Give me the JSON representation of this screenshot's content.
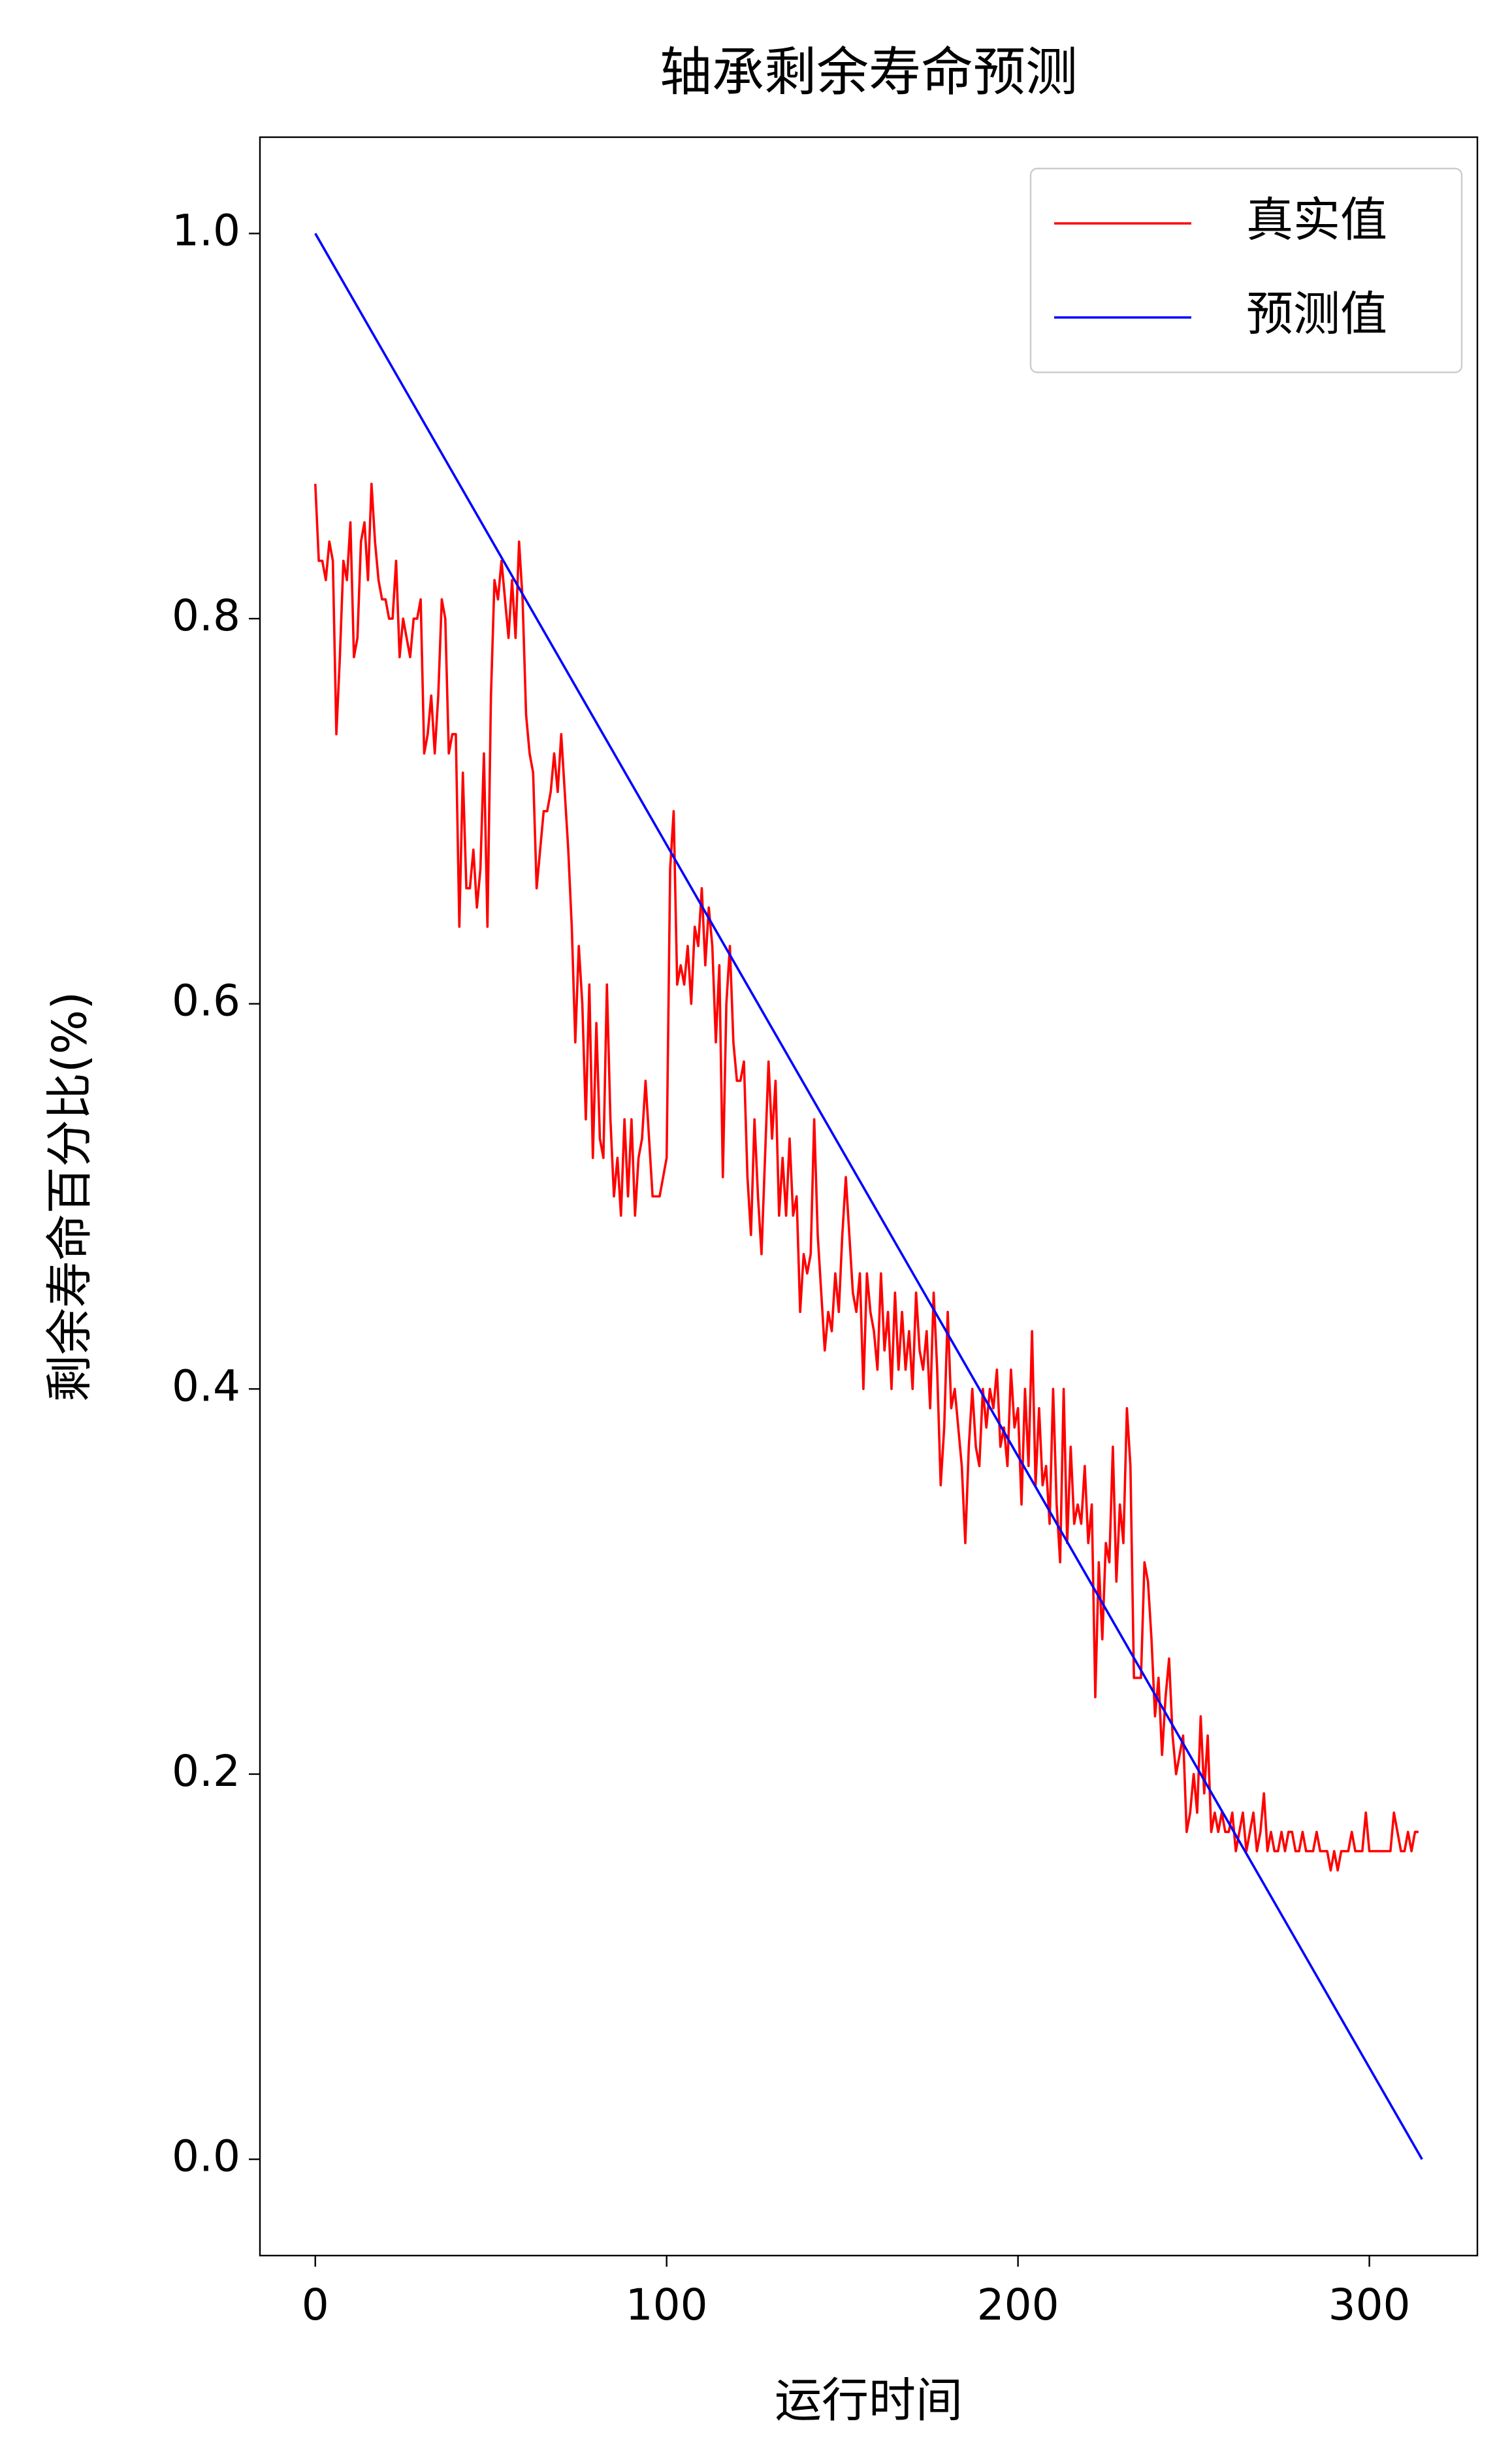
{
  "chart_data": {
    "type": "line",
    "title": "轴承剩余寿命预测",
    "x_label": "运行时间",
    "y_label": "剩余寿命百分比(%)",
    "xlim": [
      -15.75,
      330.75
    ],
    "ylim": [
      -0.05,
      1.05
    ],
    "xticks": [
      0,
      100,
      200,
      300
    ],
    "yticks": [
      {
        "value": 0,
        "label": "0.0"
      },
      0.2,
      0.4,
      0.6,
      0.8,
      {
        "value": 1,
        "label": "1.0"
      }
    ],
    "grid": false,
    "legend": "upper right",
    "series": [
      {
        "name": "真实值",
        "color": "#ff0000",
        "x": [
          0,
          1,
          2,
          3,
          4,
          5,
          6,
          7,
          8,
          9,
          10,
          11,
          12,
          13,
          14,
          15,
          16,
          17,
          18,
          19,
          20,
          21,
          22,
          23,
          24,
          25,
          26,
          27,
          28,
          29,
          30,
          31,
          32,
          33,
          34,
          35,
          36,
          37,
          38,
          39,
          40,
          41,
          42,
          43,
          44,
          45,
          46,
          47,
          48,
          49,
          50,
          51,
          52,
          53,
          54,
          55,
          56,
          57,
          58,
          59,
          60,
          61,
          62,
          63,
          64,
          65,
          66,
          67,
          68,
          69,
          70,
          71,
          72,
          73,
          74,
          75,
          76,
          77,
          78,
          79,
          80,
          81,
          82,
          83,
          84,
          85,
          86,
          87,
          88,
          89,
          90,
          91,
          92,
          93,
          94,
          95,
          96,
          97,
          98,
          99,
          100,
          101,
          102,
          103,
          104,
          105,
          106,
          107,
          108,
          109,
          110,
          111,
          112,
          113,
          114,
          115,
          116,
          117,
          118,
          119,
          120,
          121,
          122,
          123,
          124,
          125,
          126,
          127,
          128,
          129,
          130,
          131,
          132,
          133,
          134,
          135,
          136,
          137,
          138,
          139,
          140,
          141,
          142,
          143,
          144,
          145,
          146,
          147,
          148,
          149,
          150,
          151,
          152,
          153,
          154,
          155,
          156,
          157,
          158,
          159,
          160,
          161,
          162,
          163,
          164,
          165,
          166,
          167,
          168,
          169,
          170,
          171,
          172,
          173,
          174,
          175,
          176,
          177,
          178,
          179,
          180,
          181,
          182,
          183,
          184,
          185,
          186,
          187,
          188,
          189,
          190,
          191,
          192,
          193,
          194,
          195,
          196,
          197,
          198,
          199,
          200,
          201,
          202,
          203,
          204,
          205,
          206,
          207,
          208,
          209,
          210,
          211,
          212,
          213,
          214,
          215,
          216,
          217,
          218,
          219,
          220,
          221,
          222,
          223,
          224,
          225,
          226,
          227,
          228,
          229,
          230,
          231,
          232,
          233,
          234,
          235,
          236,
          237,
          238,
          239,
          240,
          241,
          242,
          243,
          244,
          245,
          246,
          247,
          248,
          249,
          250,
          251,
          252,
          253,
          254,
          255,
          256,
          257,
          258,
          259,
          260,
          261,
          262,
          263,
          264,
          265,
          266,
          267,
          268,
          269,
          270,
          271,
          272,
          273,
          274,
          275,
          276,
          277,
          278,
          279,
          280,
          281,
          282,
          283,
          284,
          285,
          286,
          287,
          288,
          289,
          290,
          291,
          292,
          293,
          294,
          295,
          296,
          297,
          298,
          299,
          300,
          301,
          302,
          303,
          304,
          305,
          306,
          307,
          308,
          309,
          310,
          311,
          312,
          313,
          314
        ],
        "values": [
          0.87,
          0.83,
          0.83,
          0.82,
          0.84,
          0.83,
          0.74,
          0.78,
          0.83,
          0.82,
          0.85,
          0.78,
          0.79,
          0.84,
          0.85,
          0.82,
          0.87,
          0.84,
          0.82,
          0.81,
          0.81,
          0.8,
          0.8,
          0.83,
          0.78,
          0.8,
          0.79,
          0.78,
          0.8,
          0.8,
          0.81,
          0.73,
          0.74,
          0.76,
          0.73,
          0.76,
          0.81,
          0.8,
          0.73,
          0.74,
          0.74,
          0.64,
          0.72,
          0.66,
          0.66,
          0.68,
          0.65,
          0.67,
          0.73,
          0.64,
          0.76,
          0.82,
          0.81,
          0.83,
          0.81,
          0.79,
          0.82,
          0.79,
          0.84,
          0.81,
          0.75,
          0.73,
          0.72,
          0.66,
          0.68,
          0.7,
          0.7,
          0.71,
          0.73,
          0.71,
          0.74,
          0.71,
          0.68,
          0.64,
          0.58,
          0.63,
          0.6,
          0.54,
          0.61,
          0.52,
          0.59,
          0.53,
          0.52,
          0.61,
          0.54,
          0.5,
          0.52,
          0.49,
          0.54,
          0.5,
          0.54,
          0.49,
          0.52,
          0.53,
          0.56,
          0.53,
          0.5,
          0.5,
          0.5,
          0.51,
          0.52,
          0.67,
          0.7,
          0.61,
          0.62,
          0.61,
          0.63,
          0.6,
          0.64,
          0.63,
          0.66,
          0.62,
          0.65,
          0.63,
          0.58,
          0.62,
          0.51,
          0.6,
          0.63,
          0.58,
          0.56,
          0.56,
          0.57,
          0.51,
          0.48,
          0.54,
          0.5,
          0.47,
          0.52,
          0.57,
          0.53,
          0.56,
          0.49,
          0.52,
          0.49,
          0.53,
          0.49,
          0.5,
          0.44,
          0.47,
          0.46,
          0.47,
          0.54,
          0.48,
          0.45,
          0.42,
          0.44,
          0.43,
          0.46,
          0.44,
          0.48,
          0.51,
          0.48,
          0.45,
          0.44,
          0.46,
          0.4,
          0.46,
          0.44,
          0.43,
          0.41,
          0.46,
          0.42,
          0.44,
          0.4,
          0.45,
          0.41,
          0.44,
          0.41,
          0.43,
          0.4,
          0.45,
          0.42,
          0.41,
          0.43,
          0.39,
          0.45,
          0.41,
          0.35,
          0.38,
          0.44,
          0.39,
          0.4,
          0.38,
          0.36,
          0.32,
          0.37,
          0.4,
          0.37,
          0.36,
          0.4,
          0.38,
          0.4,
          0.39,
          0.41,
          0.37,
          0.38,
          0.36,
          0.41,
          0.38,
          0.39,
          0.34,
          0.4,
          0.36,
          0.43,
          0.35,
          0.39,
          0.35,
          0.36,
          0.33,
          0.4,
          0.34,
          0.31,
          0.4,
          0.32,
          0.37,
          0.33,
          0.34,
          0.33,
          0.36,
          0.32,
          0.34,
          0.24,
          0.31,
          0.27,
          0.32,
          0.31,
          0.37,
          0.3,
          0.34,
          0.32,
          0.39,
          0.36,
          0.25,
          0.25,
          0.25,
          0.31,
          0.3,
          0.27,
          0.23,
          0.25,
          0.21,
          0.24,
          0.26,
          0.22,
          0.2,
          0.21,
          0.22,
          0.17,
          0.18,
          0.2,
          0.18,
          0.23,
          0.19,
          0.22,
          0.17,
          0.18,
          0.17,
          0.18,
          0.17,
          0.17,
          0.18,
          0.16,
          0.17,
          0.18,
          0.16,
          0.17,
          0.18,
          0.16,
          0.17,
          0.19,
          0.16,
          0.17,
          0.16,
          0.16,
          0.17,
          0.16,
          0.17,
          0.17,
          0.16,
          0.16,
          0.17,
          0.16,
          0.16,
          0.16,
          0.17,
          0.16,
          0.16,
          0.16,
          0.15,
          0.16,
          0.15,
          0.16,
          0.16,
          0.16,
          0.17,
          0.16,
          0.16,
          0.16,
          0.18,
          0.16,
          0.16,
          0.16,
          0.16,
          0.16,
          0.16,
          0.16,
          0.18,
          0.17,
          0.16,
          0.16,
          0.17,
          0.16,
          0.17,
          0.17
        ]
      },
      {
        "name": "预测值",
        "color": "#0000ff",
        "x": [
          0,
          315
        ],
        "values": [
          1,
          0
        ]
      }
    ]
  }
}
